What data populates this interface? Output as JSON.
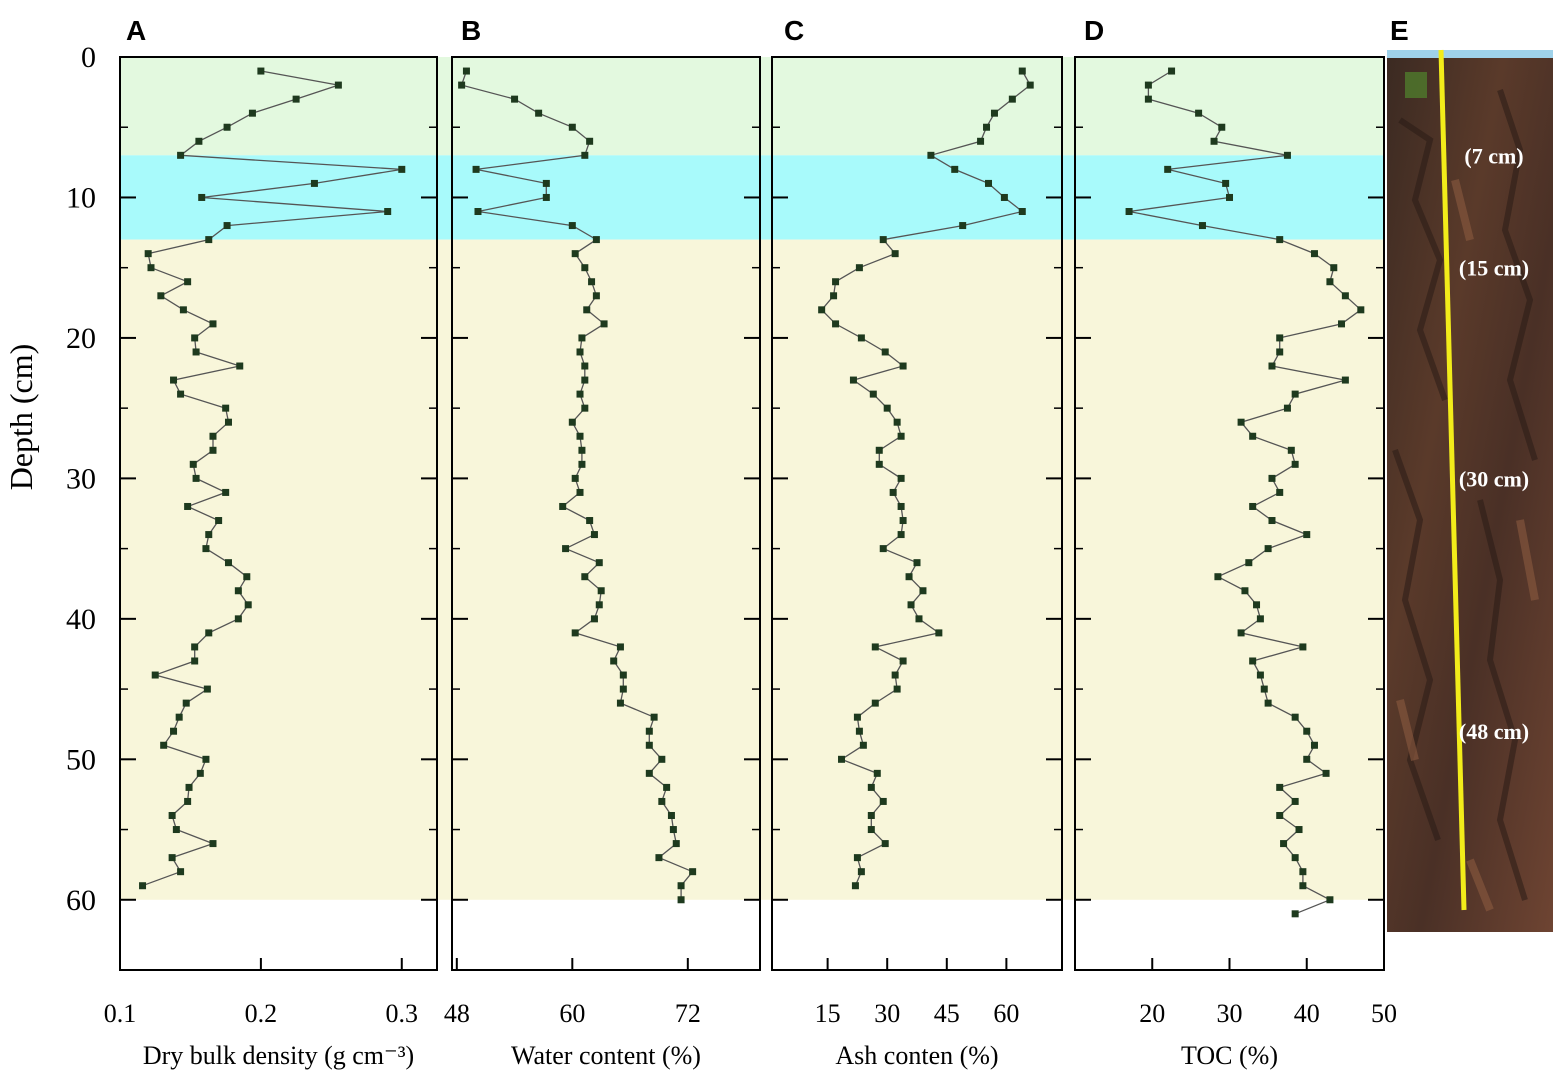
{
  "figure": {
    "y_axis_label": "Depth (cm)",
    "y_ticks": [
      0,
      10,
      20,
      30,
      40,
      50,
      60
    ],
    "bands": [
      {
        "from": 0,
        "to": 7,
        "color": "#e3f9df"
      },
      {
        "from": 7,
        "to": 13,
        "color": "#a8fafb"
      },
      {
        "from": 13,
        "to": 60,
        "color": "#f8f6da"
      }
    ],
    "photo": {
      "letter": "E",
      "labels": [
        {
          "text": "(7 cm)",
          "depth": 7
        },
        {
          "text": "(15 cm)",
          "depth": 15
        },
        {
          "text": "(30 cm)",
          "depth": 30
        },
        {
          "text": "(48 cm)",
          "depth": 48
        }
      ]
    }
  },
  "chart_data": [
    {
      "type": "line",
      "panel": "A",
      "xlabel": "Dry bulk density (g cm⁻³)",
      "xlim": [
        0.1,
        0.325
      ],
      "x_ticks": [
        "0.1",
        "0.2",
        "0.3"
      ],
      "ylabel": "Depth (cm)",
      "ylim": [
        0,
        65
      ],
      "points": [
        [
          0.2,
          1
        ],
        [
          0.255,
          2
        ],
        [
          0.225,
          3
        ],
        [
          0.194,
          4
        ],
        [
          0.176,
          5
        ],
        [
          0.156,
          6
        ],
        [
          0.143,
          7
        ],
        [
          0.3,
          8
        ],
        [
          0.238,
          9
        ],
        [
          0.158,
          10
        ],
        [
          0.29,
          11
        ],
        [
          0.176,
          12
        ],
        [
          0.163,
          13
        ],
        [
          0.12,
          14
        ],
        [
          0.122,
          15
        ],
        [
          0.148,
          16
        ],
        [
          0.129,
          17
        ],
        [
          0.145,
          18
        ],
        [
          0.166,
          19
        ],
        [
          0.153,
          20
        ],
        [
          0.154,
          21
        ],
        [
          0.185,
          22
        ],
        [
          0.138,
          23
        ],
        [
          0.143,
          24
        ],
        [
          0.175,
          25
        ],
        [
          0.177,
          26
        ],
        [
          0.166,
          27
        ],
        [
          0.166,
          28
        ],
        [
          0.152,
          29
        ],
        [
          0.154,
          30
        ],
        [
          0.175,
          31
        ],
        [
          0.148,
          32
        ],
        [
          0.17,
          33
        ],
        [
          0.163,
          34
        ],
        [
          0.161,
          35
        ],
        [
          0.177,
          36
        ],
        [
          0.19,
          37
        ],
        [
          0.184,
          38
        ],
        [
          0.191,
          39
        ],
        [
          0.184,
          40
        ],
        [
          0.163,
          41
        ],
        [
          0.153,
          42
        ],
        [
          0.153,
          43
        ],
        [
          0.125,
          44
        ],
        [
          0.162,
          45
        ],
        [
          0.147,
          46
        ],
        [
          0.142,
          47
        ],
        [
          0.138,
          48
        ],
        [
          0.131,
          49
        ],
        [
          0.161,
          50
        ],
        [
          0.157,
          51
        ],
        [
          0.149,
          52
        ],
        [
          0.148,
          53
        ],
        [
          0.137,
          54
        ],
        [
          0.14,
          55
        ],
        [
          0.166,
          56
        ],
        [
          0.137,
          57
        ],
        [
          0.143,
          58
        ],
        [
          0.116,
          59
        ]
      ]
    },
    {
      "type": "line",
      "panel": "B",
      "xlabel": "Water content (%)",
      "xlim": [
        47.5,
        79.5
      ],
      "x_ticks": [
        "48",
        "60",
        "72"
      ],
      "ylabel": "Depth (cm)",
      "ylim": [
        0,
        65
      ],
      "points": [
        [
          49,
          1
        ],
        [
          48.5,
          2
        ],
        [
          54,
          3
        ],
        [
          56.5,
          4
        ],
        [
          60,
          5
        ],
        [
          61.8,
          6
        ],
        [
          61.3,
          7
        ],
        [
          50,
          8
        ],
        [
          57.3,
          9
        ],
        [
          57.3,
          10
        ],
        [
          50.2,
          11
        ],
        [
          60,
          12
        ],
        [
          62.5,
          13
        ],
        [
          60.3,
          14
        ],
        [
          61.3,
          15
        ],
        [
          62,
          16
        ],
        [
          62.5,
          17
        ],
        [
          61.5,
          18
        ],
        [
          63.3,
          19
        ],
        [
          61,
          20
        ],
        [
          60.8,
          21
        ],
        [
          61.3,
          22
        ],
        [
          61.3,
          23
        ],
        [
          60.8,
          24
        ],
        [
          61.3,
          25
        ],
        [
          60,
          26
        ],
        [
          60.8,
          27
        ],
        [
          61,
          28
        ],
        [
          61,
          29
        ],
        [
          60.3,
          30
        ],
        [
          60.8,
          31
        ],
        [
          59,
          32
        ],
        [
          61.8,
          33
        ],
        [
          62.3,
          34
        ],
        [
          59.3,
          35
        ],
        [
          62.8,
          36
        ],
        [
          61.3,
          37
        ],
        [
          63,
          38
        ],
        [
          62.8,
          39
        ],
        [
          62.3,
          40
        ],
        [
          60.3,
          41
        ],
        [
          65,
          42
        ],
        [
          64.3,
          43
        ],
        [
          65.3,
          44
        ],
        [
          65.3,
          45
        ],
        [
          65,
          46
        ],
        [
          68.5,
          47
        ],
        [
          68,
          48
        ],
        [
          68,
          49
        ],
        [
          69.3,
          50
        ],
        [
          68,
          51
        ],
        [
          69.8,
          52
        ],
        [
          69.3,
          53
        ],
        [
          70.3,
          54
        ],
        [
          70.5,
          55
        ],
        [
          70.8,
          56
        ],
        [
          69,
          57
        ],
        [
          72.5,
          58
        ],
        [
          71.3,
          59
        ],
        [
          71.3,
          60
        ]
      ]
    },
    {
      "type": "line",
      "panel": "C",
      "xlabel": "Ash conten (%)",
      "xlim": [
        1,
        74
      ],
      "x_ticks": [
        "15",
        "30",
        "45",
        "60"
      ],
      "ylabel": "Depth (cm)",
      "ylim": [
        0,
        65
      ],
      "points": [
        [
          64,
          1
        ],
        [
          66,
          2
        ],
        [
          61.5,
          3
        ],
        [
          57,
          4
        ],
        [
          55,
          5
        ],
        [
          53.5,
          6
        ],
        [
          41,
          7
        ],
        [
          47,
          8
        ],
        [
          55.5,
          9
        ],
        [
          59.5,
          10
        ],
        [
          64,
          11
        ],
        [
          49,
          12
        ],
        [
          29,
          13
        ],
        [
          32,
          14
        ],
        [
          23,
          15
        ],
        [
          17,
          16
        ],
        [
          16.5,
          17
        ],
        [
          13.5,
          18
        ],
        [
          17,
          19
        ],
        [
          23.5,
          20
        ],
        [
          29.5,
          21
        ],
        [
          34,
          22
        ],
        [
          21.5,
          23
        ],
        [
          26.5,
          24
        ],
        [
          30,
          25
        ],
        [
          32.5,
          26
        ],
        [
          33.5,
          27
        ],
        [
          28,
          28
        ],
        [
          28,
          29
        ],
        [
          33.5,
          30
        ],
        [
          31.5,
          31
        ],
        [
          33.5,
          32
        ],
        [
          34,
          33
        ],
        [
          33.5,
          34
        ],
        [
          29,
          35
        ],
        [
          37.5,
          36
        ],
        [
          35.5,
          37
        ],
        [
          39,
          38
        ],
        [
          36,
          39
        ],
        [
          38,
          40
        ],
        [
          43,
          41
        ],
        [
          27,
          42
        ],
        [
          34,
          43
        ],
        [
          32,
          44
        ],
        [
          32.5,
          45
        ],
        [
          27,
          46
        ],
        [
          22.5,
          47
        ],
        [
          23,
          48
        ],
        [
          24,
          49
        ],
        [
          18.5,
          50
        ],
        [
          27.5,
          51
        ],
        [
          26,
          52
        ],
        [
          29,
          53
        ],
        [
          26,
          54
        ],
        [
          26,
          55
        ],
        [
          29.5,
          56
        ],
        [
          22.5,
          57
        ],
        [
          23.5,
          58
        ],
        [
          22,
          59
        ]
      ]
    },
    {
      "type": "line",
      "panel": "D",
      "xlabel": "TOC (%)",
      "xlim": [
        10,
        50
      ],
      "x_ticks": [
        "20",
        "30",
        "40",
        "50"
      ],
      "ylabel": "Depth (cm)",
      "ylim": [
        0,
        65
      ],
      "points": [
        [
          22.5,
          1
        ],
        [
          19.5,
          2
        ],
        [
          19.5,
          3
        ],
        [
          26,
          4
        ],
        [
          29,
          5
        ],
        [
          28,
          6
        ],
        [
          37.5,
          7
        ],
        [
          22,
          8
        ],
        [
          29.5,
          9
        ],
        [
          30,
          10
        ],
        [
          17,
          11
        ],
        [
          26.5,
          12
        ],
        [
          36.5,
          13
        ],
        [
          41,
          14
        ],
        [
          43.5,
          15
        ],
        [
          43,
          16
        ],
        [
          45,
          17
        ],
        [
          47,
          18
        ],
        [
          44.5,
          19
        ],
        [
          36.5,
          20
        ],
        [
          36.5,
          21
        ],
        [
          35.5,
          22
        ],
        [
          45,
          23
        ],
        [
          38.5,
          24
        ],
        [
          37.5,
          25
        ],
        [
          31.5,
          26
        ],
        [
          33,
          27
        ],
        [
          38,
          28
        ],
        [
          38.5,
          29
        ],
        [
          35.5,
          30
        ],
        [
          36.5,
          31
        ],
        [
          33,
          32
        ],
        [
          35.5,
          33
        ],
        [
          40,
          34
        ],
        [
          35,
          35
        ],
        [
          32.5,
          36
        ],
        [
          28.5,
          37
        ],
        [
          32,
          38
        ],
        [
          33.5,
          39
        ],
        [
          34,
          40
        ],
        [
          31.5,
          41
        ],
        [
          39.5,
          42
        ],
        [
          33,
          43
        ],
        [
          34,
          44
        ],
        [
          34.5,
          45
        ],
        [
          35,
          46
        ],
        [
          38.5,
          47
        ],
        [
          40,
          48
        ],
        [
          41,
          49
        ],
        [
          40,
          50
        ],
        [
          42.5,
          51
        ],
        [
          36.5,
          52
        ],
        [
          38.5,
          53
        ],
        [
          36.5,
          54
        ],
        [
          39,
          55
        ],
        [
          37,
          56
        ],
        [
          38.5,
          57
        ],
        [
          39.5,
          58
        ],
        [
          39.5,
          59
        ],
        [
          43,
          60
        ],
        [
          38.5,
          61
        ]
      ]
    }
  ]
}
